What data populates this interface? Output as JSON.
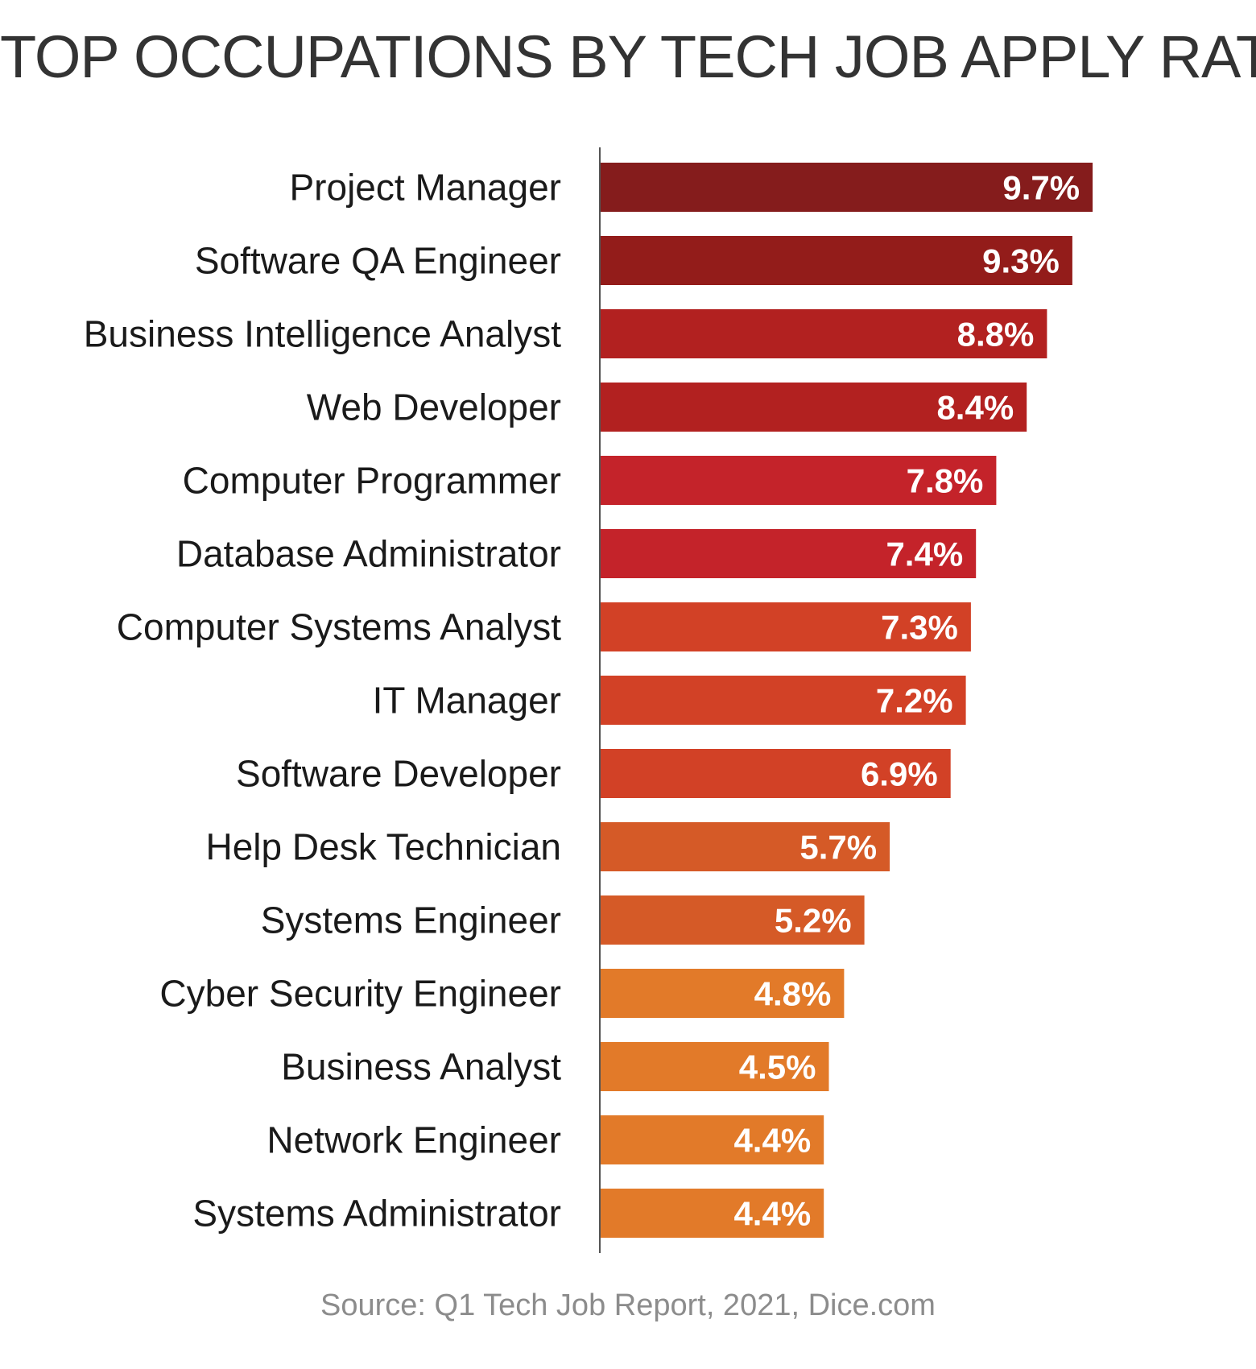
{
  "chart_data": {
    "type": "bar",
    "orientation": "horizontal",
    "title": "TOP OCCUPATIONS BY TECH JOB APPLY RATE",
    "categories": [
      "Project Manager",
      "Software QA Engineer",
      "Business Intelligence Analyst",
      "Web Developer",
      "Computer Programmer",
      "Database Administrator",
      "Computer Systems Analyst",
      "IT Manager",
      "Software Developer",
      "Help Desk Technician",
      "Systems Engineer",
      "Cyber Security Engineer",
      "Business Analyst",
      "Network Engineer",
      "Systems Administrator"
    ],
    "values": [
      9.7,
      9.3,
      8.8,
      8.4,
      7.8,
      7.4,
      7.3,
      7.2,
      6.9,
      5.7,
      5.2,
      4.8,
      4.5,
      4.4,
      4.4
    ],
    "value_labels": [
      "9.7%",
      "9.3%",
      "8.8%",
      "8.4%",
      "7.8%",
      "7.4%",
      "7.3%",
      "7.2%",
      "6.9%",
      "5.7%",
      "5.2%",
      "4.8%",
      "4.5%",
      "4.4%",
      "4.4%"
    ],
    "bar_colors": [
      "#851c1c",
      "#931c1a",
      "#b22120",
      "#b22120",
      "#c4232a",
      "#c4232a",
      "#d24126",
      "#d24126",
      "#d24126",
      "#d55a27",
      "#d55a27",
      "#e27a29",
      "#e27a29",
      "#e27a29",
      "#e27a29"
    ],
    "xlim": [
      0,
      10
    ],
    "grid": false,
    "legend": "none"
  },
  "source": "Source: Q1 Tech Job Report, 2021, Dice.com"
}
